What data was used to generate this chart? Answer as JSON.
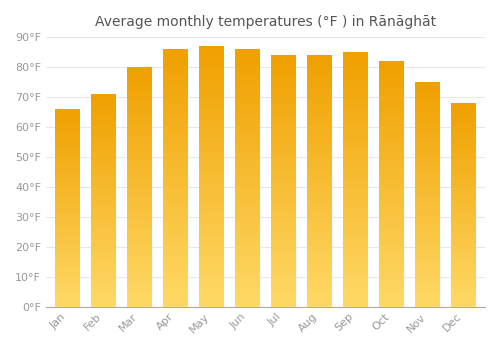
{
  "title": "Average monthly temperatures (°F ) in Rānāghāt",
  "months": [
    "Jan",
    "Feb",
    "Mar",
    "Apr",
    "May",
    "Jun",
    "Jul",
    "Aug",
    "Sep",
    "Oct",
    "Nov",
    "Dec"
  ],
  "values": [
    66,
    71,
    80,
    86,
    87,
    86,
    84,
    84,
    85,
    82,
    75,
    68
  ],
  "bar_color_dark": "#F0A000",
  "bar_color_light": "#FFD966",
  "ylim": [
    0,
    90
  ],
  "yticks": [
    0,
    10,
    20,
    30,
    40,
    50,
    60,
    70,
    80,
    90
  ],
  "ytick_labels": [
    "0°F",
    "10°F",
    "20°F",
    "30°F",
    "40°F",
    "50°F",
    "60°F",
    "70°F",
    "80°F",
    "90°F"
  ],
  "bg_color": "#ffffff",
  "grid_color": "#e8e8e8",
  "title_fontsize": 10,
  "tick_fontsize": 8,
  "tick_color": "#999999",
  "title_color": "#555555",
  "gradient_steps": 100
}
